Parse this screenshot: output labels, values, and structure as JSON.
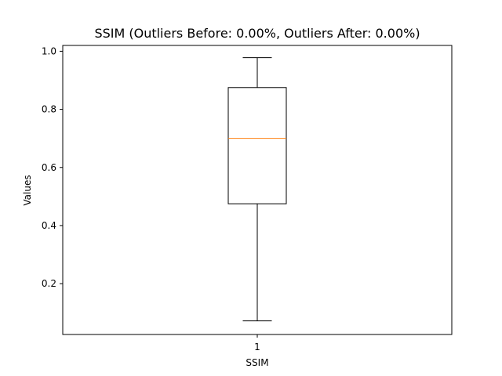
{
  "chart_data": {
    "type": "box",
    "title": "SSIM (Outliers Before: 0.00%, Outliers After: 0.00%)",
    "xlabel": "SSIM",
    "ylabel": "Values",
    "categories": [
      "1"
    ],
    "ylim": [
      0.025,
      1.02
    ],
    "yticks": [
      0.2,
      0.4,
      0.6,
      0.8,
      1.0
    ],
    "ytick_labels": [
      "0.2",
      "0.4",
      "0.6",
      "0.8",
      "1.0"
    ],
    "grid": false,
    "boxes": [
      {
        "label": "1",
        "whisker_low": 0.072,
        "q1": 0.475,
        "median": 0.7,
        "q3": 0.875,
        "whisker_high": 0.978,
        "outliers": []
      }
    ],
    "colors": {
      "box": "#000000",
      "median": "#ff7f0e"
    }
  }
}
